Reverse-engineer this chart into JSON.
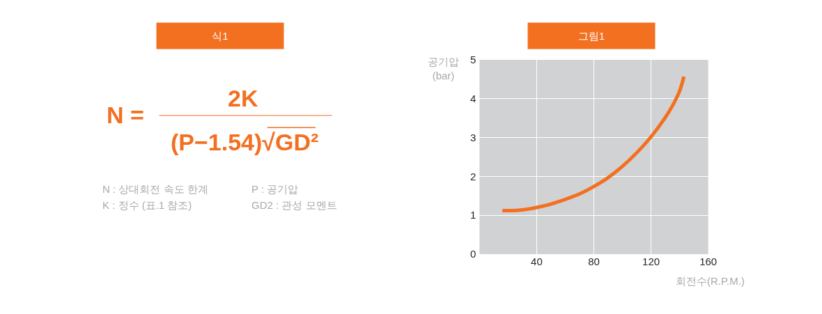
{
  "chart_data": [
    {
      "type": "other",
      "title": "식1",
      "annotations": [
        "N =",
        "2K",
        "(P−1.54)√GD²",
        "N : 상대회전 속도 한계",
        "P : 공기압",
        "K : 정수 (표.1 참조)",
        "GD2 : 관성 모멘트"
      ]
    },
    {
      "type": "line",
      "title": "그림1",
      "xlabel": "회전수(R.P.M.)",
      "ylabel": "공기압\n(bar)",
      "x": [
        16,
        20,
        30,
        40,
        50,
        60,
        70,
        80,
        90,
        100,
        110,
        120,
        130,
        135,
        140,
        143
      ],
      "series": [
        {
          "color": "#f37021",
          "values": [
            1.12,
            1.12,
            1.14,
            1.2,
            1.29,
            1.41,
            1.55,
            1.74,
            1.97,
            2.26,
            2.61,
            3.02,
            3.52,
            3.82,
            4.2,
            4.57
          ]
        }
      ],
      "xlim": [
        0,
        160
      ],
      "xticks": [
        40,
        80,
        120,
        160
      ],
      "ylim": [
        0,
        5
      ],
      "yticks": [
        0,
        1,
        2,
        3,
        4,
        5
      ],
      "grid": true
    }
  ]
}
